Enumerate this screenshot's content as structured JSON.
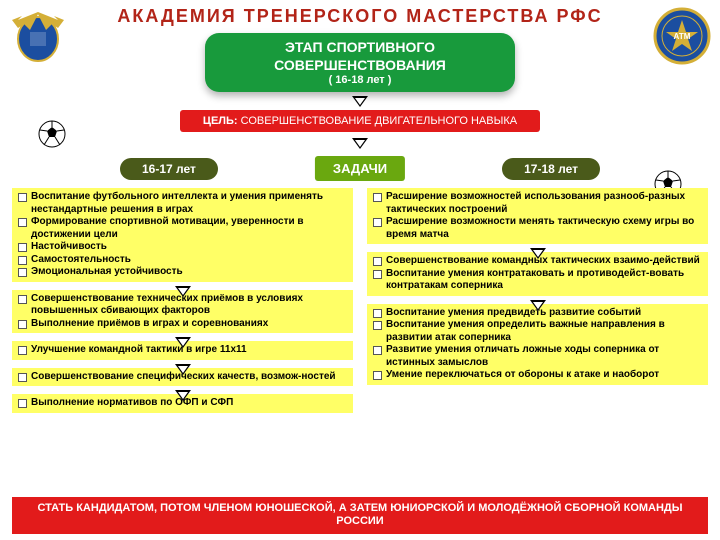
{
  "colors": {
    "title": "#b22418",
    "stage_bg": "#189a3c",
    "goal_bg": "#e21b1b",
    "tasks_bg": "#6aa80f",
    "age_bg": "#4a5a1a",
    "block_bg": "#ffff66",
    "footer_bg": "#e21b1b"
  },
  "title": "АКАДЕМИЯ  ТРЕНЕРСКОГО  МАСТЕРСТВА  РФС",
  "stage": {
    "line1": "ЭТАП СПОРТИВНОГО",
    "line2": "СОВЕРШЕНСТВОВАНИЯ",
    "sub": "( 16-18 лет )"
  },
  "goal": {
    "label": "ЦЕЛЬ:",
    "text": "СОВЕРШЕНСТВОВАНИЕ ДВИГАТЕЛЬНОГО НАВЫКА"
  },
  "tasks_label": "ЗАДАЧИ",
  "age": {
    "left": "16-17 лет",
    "right": "17-18 лет"
  },
  "left_blocks": [
    [
      "Воспитание футбольного интеллекта и умения применять нестандартные решения в играх",
      "Формирование спортивной мотивации, уверенности в достижении цели",
      "Настойчивость",
      "Самостоятельность",
      "Эмоциональная устойчивость"
    ],
    [
      "Совершенствование технических приёмов в условиях повышенных сбивающих факторов",
      "Выполнение приёмов в играх и соревнованиях"
    ],
    [
      "Улучшение командной тактики в игре 11х11"
    ],
    [
      "Совершенствование специфических качеств, возмож-ностей"
    ],
    [
      "Выполнение нормативов по ОФП и СФП"
    ]
  ],
  "right_blocks": [
    [
      "Расширение возможностей использования разнооб-разных тактических построений",
      "Расширение возможности менять тактическую схему игры во время матча"
    ],
    [
      "Совершенствование командных тактических взаимо-действий",
      "Воспитание умения контратаковать и противодейст-вовать контратакам соперника"
    ],
    [
      "Воспитание умения предвидеть развитие событий",
      "Воспитание умения определить важные направления в развитии атак соперника",
      "Развитие умения отличать ложные ходы соперника от истинных замыслов",
      "Умение переключаться от обороны к атаке и наоборот"
    ]
  ],
  "footer": "СТАТЬ КАНДИДАТОМ, ПОТОМ ЧЛЕНОМ ЮНОШЕСКОЙ, А ЗАТЕМ ЮНИОРСКОЙ И МОЛОДЁЖНОЙ СБОРНОЙ КОМАНДЫ РОССИИ"
}
